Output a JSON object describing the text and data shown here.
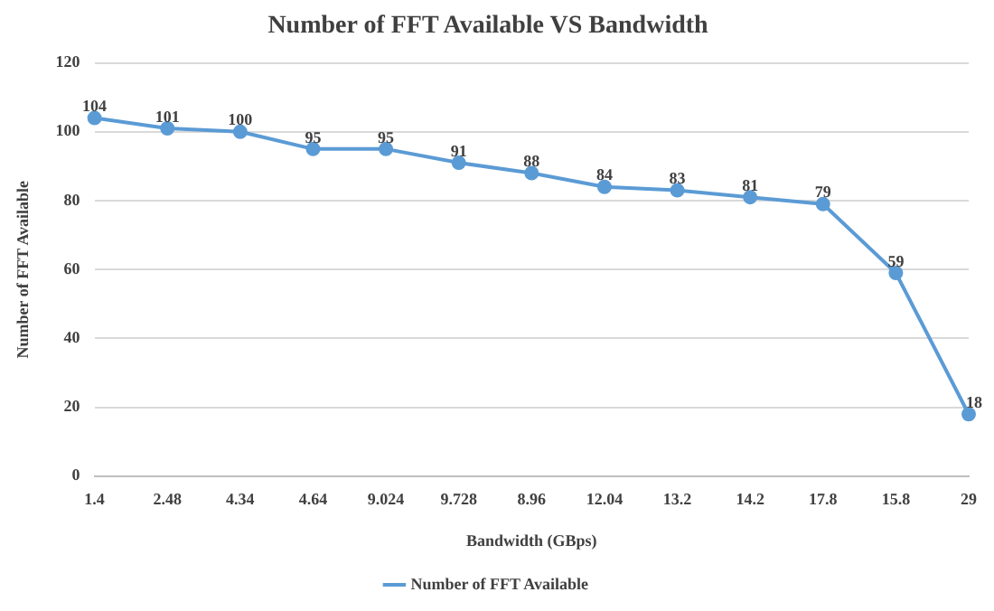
{
  "chart_data": {
    "type": "line",
    "title": "Number of FFT Available VS Bandwidth",
    "xlabel": "Bandwidth (GBps)",
    "ylabel": "Number of FFT Available",
    "categories": [
      "1.4",
      "2.48",
      "4.34",
      "4.64",
      "9.024",
      "9.728",
      "8.96",
      "12.04",
      "13.2",
      "14.2",
      "17.8",
      "15.8",
      "29"
    ],
    "series": [
      {
        "name": "Number of FFT Available",
        "color": "#5b9bd5",
        "values": [
          104,
          101,
          100,
          95,
          95,
          91,
          88,
          84,
          83,
          81,
          79,
          59,
          18
        ]
      }
    ],
    "ylim": [
      0,
      120
    ],
    "yticks": [
      0,
      20,
      40,
      60,
      80,
      100,
      120
    ],
    "grid": "y",
    "legend": "bottom",
    "marker": "circle",
    "data_labels": true
  }
}
